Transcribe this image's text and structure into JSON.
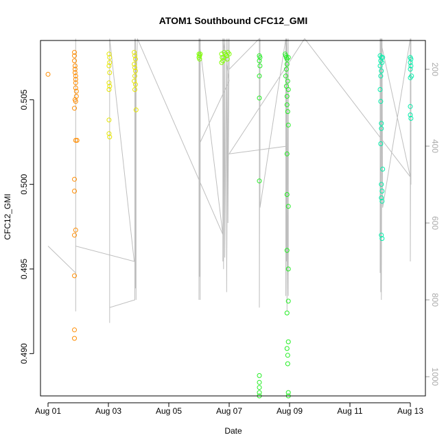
{
  "chart_data": {
    "type": "scatter",
    "title": "ATOM1 Southbound CFC12_GMI",
    "xlabel": "Date",
    "ylabel": "CFC12_GMI",
    "right_axis_label": "",
    "x_ticks": [
      {
        "day": 1,
        "label": "Aug 01"
      },
      {
        "day": 3,
        "label": "Aug 03"
      },
      {
        "day": 5,
        "label": "Aug 05"
      },
      {
        "day": 7,
        "label": "Aug 07"
      },
      {
        "day": 9,
        "label": "Aug 09"
      },
      {
        "day": 11,
        "label": "Aug 11"
      },
      {
        "day": 13,
        "label": "Aug 13"
      }
    ],
    "y_ticks": [
      {
        "value": 0.49,
        "label": "0.490"
      },
      {
        "value": 0.495,
        "label": "0.495"
      },
      {
        "value": 0.5,
        "label": "0.500"
      },
      {
        "value": 0.505,
        "label": "0.505"
      }
    ],
    "right_ticks": [
      {
        "value": 200,
        "label": "200"
      },
      {
        "value": 400,
        "label": "400"
      },
      {
        "value": 600,
        "label": "600"
      },
      {
        "value": 800,
        "label": "800"
      },
      {
        "value": 1000,
        "label": "1000"
      }
    ],
    "xlim": [
      "2016-07-31T18:00",
      "2016-08-13T12:00"
    ],
    "ylim": [
      0.4875,
      0.5085
    ],
    "right_ylim": [
      1050,
      125
    ],
    "right_axis_inverted": true,
    "grid": false,
    "legend": "none",
    "series": [
      {
        "color": "#FF8C00",
        "points": [
          [
            "2016-08-01T00:00",
            0.5065
          ],
          [
            "2016-08-01T21:00",
            0.5078
          ],
          [
            "2016-08-01T21:00",
            0.5076
          ],
          [
            "2016-08-01T21:00",
            0.5073
          ],
          [
            "2016-08-01T21:30",
            0.507
          ],
          [
            "2016-08-01T21:30",
            0.5068
          ],
          [
            "2016-08-01T21:30",
            0.5066
          ],
          [
            "2016-08-01T22:00",
            0.5064
          ],
          [
            "2016-08-01T22:00",
            0.5062
          ],
          [
            "2016-08-01T22:00",
            0.506
          ],
          [
            "2016-08-01T22:00",
            0.5057
          ],
          [
            "2016-08-01T22:30",
            0.5055
          ],
          [
            "2016-08-01T22:30",
            0.5052
          ],
          [
            "2016-08-01T21:30",
            0.505
          ],
          [
            "2016-08-01T22:00",
            0.5049
          ],
          [
            "2016-08-01T21:00",
            0.5045
          ],
          [
            "2016-08-01T22:00",
            0.5026
          ],
          [
            "2016-08-01T23:00",
            0.5026
          ],
          [
            "2016-08-01T21:00",
            0.5003
          ],
          [
            "2016-08-01T21:00",
            0.4996
          ],
          [
            "2016-08-01T22:00",
            0.4973
          ],
          [
            "2016-08-01T21:00",
            0.497
          ],
          [
            "2016-08-01T21:00",
            0.4946
          ],
          [
            "2016-08-01T21:00",
            0.4914
          ],
          [
            "2016-08-01T21:00",
            0.4909
          ]
        ]
      },
      {
        "color": "#E5E500",
        "points": [
          [
            "2016-08-03T00:30",
            0.5077
          ],
          [
            "2016-08-03T01:00",
            0.5075
          ],
          [
            "2016-08-03T01:00",
            0.5072
          ],
          [
            "2016-08-03T00:30",
            0.507
          ],
          [
            "2016-08-03T01:00",
            0.5066
          ],
          [
            "2016-08-03T00:30",
            0.506
          ],
          [
            "2016-08-03T01:00",
            0.5058
          ],
          [
            "2016-08-03T00:30",
            0.5056
          ],
          [
            "2016-08-03T00:30",
            0.5038
          ],
          [
            "2016-08-03T00:30",
            0.503
          ],
          [
            "2016-08-03T01:00",
            0.5028
          ],
          [
            "2016-08-03T20:30",
            0.5078
          ],
          [
            "2016-08-03T21:00",
            0.5076
          ],
          [
            "2016-08-03T21:30",
            0.5074
          ],
          [
            "2016-08-03T20:30",
            0.5071
          ],
          [
            "2016-08-03T21:00",
            0.5069
          ],
          [
            "2016-08-03T21:30",
            0.5067
          ],
          [
            "2016-08-03T21:00",
            0.5064
          ],
          [
            "2016-08-03T20:30",
            0.5061
          ],
          [
            "2016-08-03T21:30",
            0.5059
          ],
          [
            "2016-08-03T21:00",
            0.5056
          ],
          [
            "2016-08-03T22:00",
            0.5044
          ]
        ]
      },
      {
        "color": "#7FFF00",
        "points": [
          [
            "2016-08-06T00:00",
            0.5077
          ],
          [
            "2016-08-06T00:30",
            0.5076
          ],
          [
            "2016-08-06T00:30",
            0.5074
          ],
          [
            "2016-08-06T01:00",
            0.5077
          ],
          [
            "2016-08-06T00:00",
            0.5075
          ],
          [
            "2016-08-06T18:00",
            0.5077
          ],
          [
            "2016-08-06T18:30",
            0.5075
          ],
          [
            "2016-08-06T19:00",
            0.5073
          ],
          [
            "2016-08-06T20:00",
            0.5078
          ],
          [
            "2016-08-06T21:00",
            0.5077
          ],
          [
            "2016-08-06T22:00",
            0.5076
          ],
          [
            "2016-08-06T23:00",
            0.5078
          ],
          [
            "2016-08-07T00:00",
            0.5077
          ],
          [
            "2016-08-06T19:30",
            0.5075
          ],
          [
            "2016-08-06T22:30",
            0.5074
          ],
          [
            "2016-08-06T18:00",
            0.5072
          ]
        ]
      },
      {
        "color": "#22EE22",
        "points": [
          [
            "2016-08-08T00:00",
            0.5076
          ],
          [
            "2016-08-08T00:30",
            0.5075
          ],
          [
            "2016-08-08T00:00",
            0.5073
          ],
          [
            "2016-08-08T00:30",
            0.507
          ],
          [
            "2016-08-08T00:00",
            0.5064
          ],
          [
            "2016-08-08T00:00",
            0.5051
          ],
          [
            "2016-08-08T00:00",
            0.5002
          ],
          [
            "2016-08-08T00:00",
            0.4887
          ],
          [
            "2016-08-08T00:00",
            0.4883
          ],
          [
            "2016-08-08T00:00",
            0.488
          ],
          [
            "2016-08-08T00:00",
            0.4877
          ],
          [
            "2016-08-08T00:00",
            0.4875
          ],
          [
            "2016-08-08T20:30",
            0.5077
          ],
          [
            "2016-08-08T21:00",
            0.5076
          ],
          [
            "2016-08-08T21:30",
            0.5075
          ],
          [
            "2016-08-08T22:00",
            0.5074
          ],
          [
            "2016-08-08T23:00",
            0.5075
          ],
          [
            "2016-08-08T22:00",
            0.5071
          ],
          [
            "2016-08-08T21:30",
            0.5068
          ],
          [
            "2016-08-08T21:00",
            0.5064
          ],
          [
            "2016-08-08T22:30",
            0.5061
          ],
          [
            "2016-08-08T21:30",
            0.5058
          ],
          [
            "2016-08-08T23:00",
            0.5056
          ],
          [
            "2016-08-08T22:00",
            0.5052
          ],
          [
            "2016-08-08T22:00",
            0.5047
          ],
          [
            "2016-08-08T22:30",
            0.5043
          ],
          [
            "2016-08-08T23:00",
            0.5035
          ],
          [
            "2016-08-08T22:00",
            0.5018
          ],
          [
            "2016-08-08T22:00",
            0.4994
          ],
          [
            "2016-08-08T23:00",
            0.4987
          ],
          [
            "2016-08-08T22:00",
            0.4961
          ],
          [
            "2016-08-08T23:00",
            0.495
          ],
          [
            "2016-08-08T23:00",
            0.4931
          ],
          [
            "2016-08-08T22:00",
            0.4924
          ],
          [
            "2016-08-08T23:00",
            0.4907
          ],
          [
            "2016-08-08T22:00",
            0.4903
          ],
          [
            "2016-08-08T22:30",
            0.4899
          ],
          [
            "2016-08-08T22:30",
            0.4894
          ],
          [
            "2016-08-08T23:00",
            0.4877
          ],
          [
            "2016-08-08T23:00",
            0.4875
          ]
        ]
      },
      {
        "color": "#00EEAA",
        "points": [
          [
            "2016-08-12T00:00",
            0.5076
          ],
          [
            "2016-08-12T01:00",
            0.5075
          ],
          [
            "2016-08-12T02:00",
            0.5075
          ],
          [
            "2016-08-12T00:30",
            0.5073
          ],
          [
            "2016-08-12T01:30",
            0.5072
          ],
          [
            "2016-08-12T00:00",
            0.507
          ],
          [
            "2016-08-12T01:00",
            0.5067
          ],
          [
            "2016-08-12T00:30",
            0.5064
          ],
          [
            "2016-08-12T00:00",
            0.5056
          ],
          [
            "2016-08-12T00:30",
            0.5049
          ],
          [
            "2016-08-12T01:00",
            0.5036
          ],
          [
            "2016-08-12T01:00",
            0.5033
          ],
          [
            "2016-08-12T00:30",
            0.5024
          ],
          [
            "2016-08-12T02:00",
            0.5009
          ],
          [
            "2016-08-12T01:00",
            0.5
          ],
          [
            "2016-08-12T01:30",
            0.4996
          ],
          [
            "2016-08-12T01:00",
            0.4992
          ],
          [
            "2016-08-12T01:30",
            0.499
          ],
          [
            "2016-08-12T01:00",
            0.497
          ],
          [
            "2016-08-12T01:30",
            0.4968
          ],
          [
            "2016-08-13T00:00",
            0.5075
          ],
          [
            "2016-08-13T00:30",
            0.5074
          ],
          [
            "2016-08-13T00:00",
            0.5072
          ],
          [
            "2016-08-13T00:30",
            0.507
          ],
          [
            "2016-08-13T00:00",
            0.5068
          ],
          [
            "2016-08-13T01:00",
            0.5064
          ],
          [
            "2016-08-13T00:00",
            0.5063
          ],
          [
            "2016-08-13T00:00",
            0.5046
          ],
          [
            "2016-08-13T00:00",
            0.5041
          ],
          [
            "2016-08-13T00:30",
            0.5039
          ]
        ]
      }
    ],
    "altitude_profile": {
      "color": "#BEBEBE",
      "points": [
        [
          "2016-08-01T00:00",
          660
        ],
        [
          "2016-08-01T22:00",
          730
        ],
        [
          "2016-08-01T22:00",
          760
        ],
        [
          "2016-08-01T22:00",
          470
        ],
        [
          "2016-08-01T22:00",
          790
        ],
        [
          "2016-08-01T22:00",
          120
        ],
        [
          "2016-08-01T22:00",
          800
        ],
        [
          "2016-08-01T22:00",
          580
        ],
        [
          "2016-08-01T22:00",
          830
        ],
        [
          "2016-08-01T22:00",
          450
        ],
        [
          "2016-08-01T22:00",
          760
        ],
        [
          "2016-08-01T22:00",
          660
        ],
        [
          "2016-08-03T20:30",
          700
        ],
        [
          "2016-08-03T01:00",
          120
        ],
        [
          "2016-08-03T01:00",
          810
        ],
        [
          "2016-08-03T01:00",
          160
        ],
        [
          "2016-08-03T01:00",
          860
        ],
        [
          "2016-08-03T01:00",
          120
        ],
        [
          "2016-08-03T01:00",
          820
        ],
        [
          "2016-08-03T21:00",
          800
        ],
        [
          "2016-08-03T21:00",
          120
        ],
        [
          "2016-08-03T21:00",
          780
        ],
        [
          "2016-08-03T21:00",
          160
        ],
        [
          "2016-08-03T21:00",
          790
        ],
        [
          "2016-08-03T21:30",
          120
        ],
        [
          "2016-08-03T21:30",
          770
        ],
        [
          "2016-08-03T22:00",
          160
        ],
        [
          "2016-08-03T22:00",
          800
        ],
        [
          "2016-08-03T22:00",
          240
        ],
        [
          "2016-08-03T23:00",
          120
        ],
        [
          "2016-08-06T19:00",
          630
        ],
        [
          "2016-08-06T00:00",
          120
        ],
        [
          "2016-08-06T00:00",
          800
        ],
        [
          "2016-08-06T00:30",
          120
        ],
        [
          "2016-08-06T00:30",
          740
        ],
        [
          "2016-08-06T01:00",
          120
        ],
        [
          "2016-08-06T01:00",
          800
        ],
        [
          "2016-08-06T01:00",
          300
        ],
        [
          "2016-08-06T01:00",
          390
        ],
        [
          "2016-08-07T00:00",
          230
        ],
        [
          "2016-08-06T19:00",
          120
        ],
        [
          "2016-08-06T19:00",
          700
        ],
        [
          "2016-08-06T19:30",
          120
        ],
        [
          "2016-08-06T19:30",
          720
        ],
        [
          "2016-08-06T20:30",
          120
        ],
        [
          "2016-08-06T20:30",
          690
        ],
        [
          "2016-08-06T22:00",
          120
        ],
        [
          "2016-08-06T22:00",
          780
        ],
        [
          "2016-08-06T23:00",
          120
        ],
        [
          "2016-08-06T23:00",
          600
        ],
        [
          "2016-08-07T00:00",
          120
        ],
        [
          "2016-08-07T00:00",
          200
        ],
        [
          "2016-08-08T00:00",
          120
        ],
        [
          "2016-08-08T00:00",
          820
        ],
        [
          "2016-08-08T00:30",
          120
        ],
        [
          "2016-08-08T00:30",
          560
        ],
        [
          "2016-08-08T21:00",
          120
        ],
        [
          "2016-08-08T21:00",
          790
        ],
        [
          "2016-08-08T21:30",
          120
        ],
        [
          "2016-08-08T21:30",
          700
        ],
        [
          "2016-08-08T22:00",
          120
        ],
        [
          "2016-08-08T22:00",
          830
        ],
        [
          "2016-08-08T23:00",
          120
        ],
        [
          "2016-08-08T23:00",
          790
        ],
        [
          "2016-08-08T22:00",
          400
        ],
        [
          "2016-08-07T00:00",
          420
        ],
        [
          "2016-08-09T12:00",
          120
        ],
        [
          "2016-08-13T00:00",
          480
        ],
        [
          "2016-08-12T00:00",
          120
        ],
        [
          "2016-08-12T00:00",
          730
        ],
        [
          "2016-08-12T00:30",
          120
        ],
        [
          "2016-08-12T00:30",
          780
        ],
        [
          "2016-08-12T01:00",
          120
        ],
        [
          "2016-08-12T01:00",
          800
        ],
        [
          "2016-08-12T01:30",
          120
        ],
        [
          "2016-08-12T02:00",
          560
        ],
        [
          "2016-08-13T00:00",
          120
        ],
        [
          "2016-08-13T00:00",
          700
        ],
        [
          "2016-08-13T00:30",
          120
        ],
        [
          "2016-08-13T00:30",
          500
        ]
      ]
    }
  }
}
